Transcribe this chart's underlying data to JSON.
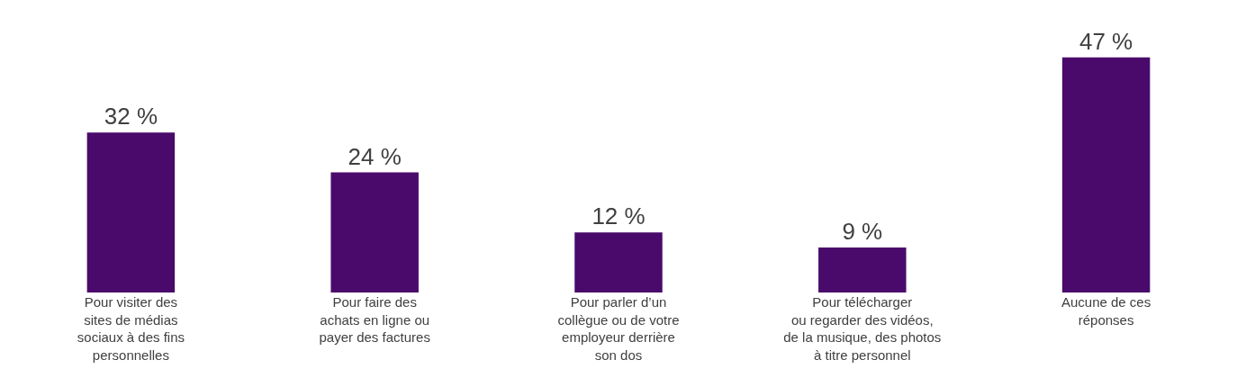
{
  "chart_data": {
    "type": "bar",
    "categories": [
      "Pour visiter des\nsites de médias\nsociaux à des fins\npersonnelles",
      "Pour faire des\nachats en ligne ou\npayer des factures",
      "Pour parler d’un\ncollègue ou de votre\nemployeur derrière\nson dos",
      "Pour télécharger\nou regarder des vidéos,\nde la musique, des photos\nà titre personnel",
      "Aucune de ces\nréponses"
    ],
    "values": [
      32,
      24,
      12,
      9,
      47
    ],
    "value_labels": [
      "32 %",
      "24 %",
      "12 %",
      "9 %",
      "47 %"
    ],
    "color": "#4a0a6b",
    "tick_labels": "x"
  }
}
